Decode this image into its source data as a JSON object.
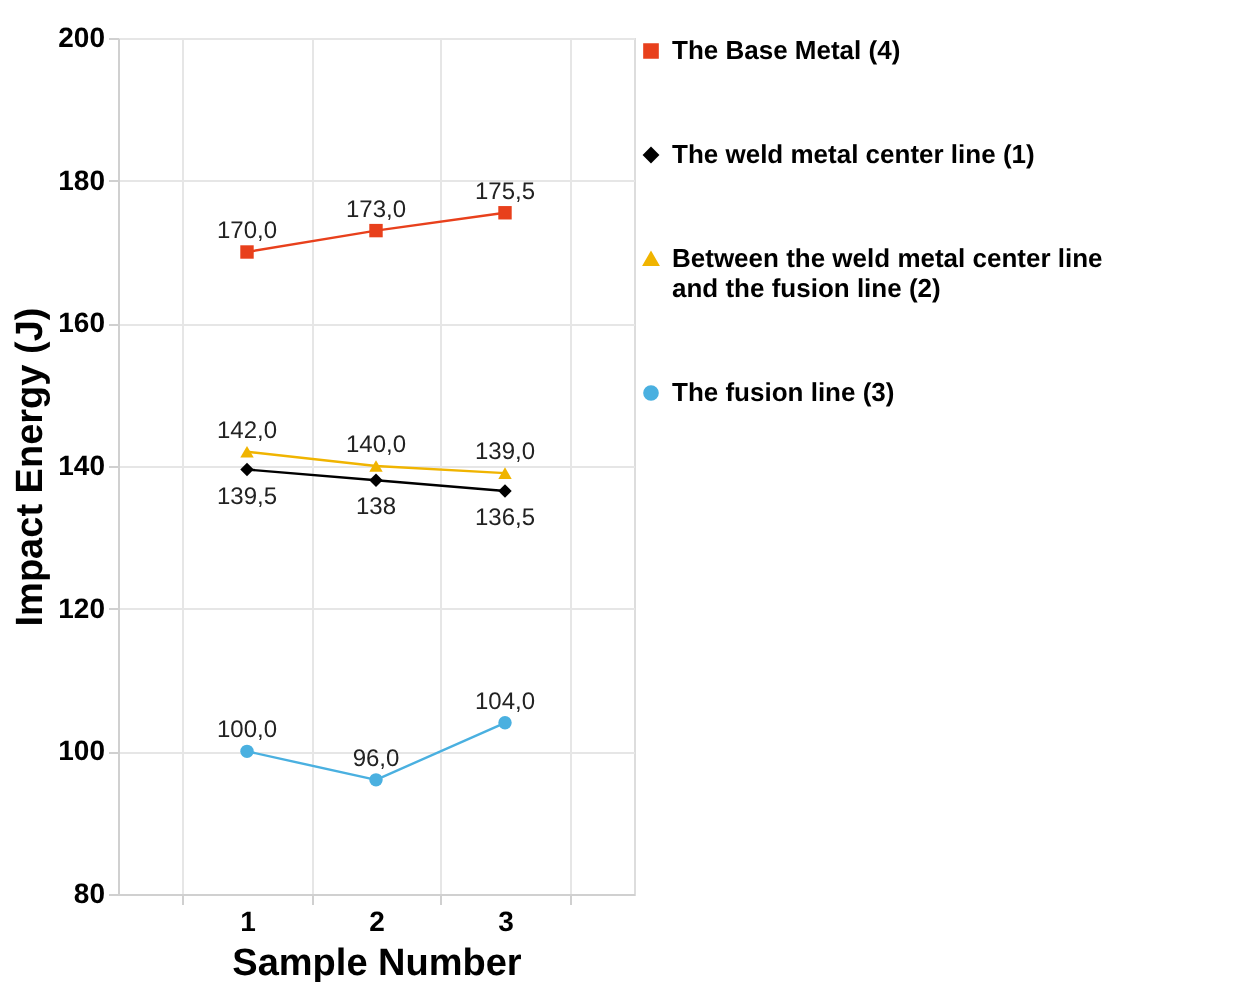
{
  "chart_data": {
    "type": "line",
    "xlabel": "Sample Number",
    "ylabel": "Impact Energy (J)",
    "categories": [
      "1",
      "2",
      "3"
    ],
    "ylim": [
      80,
      200
    ],
    "yticks": [
      80,
      100,
      120,
      140,
      160,
      180,
      200
    ],
    "grid": true,
    "legend": "right",
    "line_style": "solid",
    "series": [
      {
        "name": "The Base Metal (4)",
        "color": "#e8401c",
        "marker": "square",
        "values": [
          170,
          173,
          175.5
        ],
        "value_labels": [
          "170,0",
          "173,0",
          "175,5"
        ]
      },
      {
        "name": "The weld metal center line (1)",
        "color": "#000000",
        "marker": "diamond",
        "values": [
          139.5,
          138,
          136.5
        ],
        "value_labels": [
          "139,5",
          "138",
          "136,5"
        ]
      },
      {
        "name": "Between the weld metal center line and the fusion line (2)",
        "color": "#f0b400",
        "marker": "triangle",
        "values": [
          142,
          140,
          139
        ],
        "value_labels": [
          "142,0",
          "140,0",
          "139,0"
        ]
      },
      {
        "name": "The fusion line (3)",
        "color": "#4ab0e0",
        "marker": "circle",
        "values": [
          100,
          96,
          104
        ],
        "value_labels": [
          "100,0",
          "96,0",
          "104,0"
        ]
      }
    ]
  }
}
